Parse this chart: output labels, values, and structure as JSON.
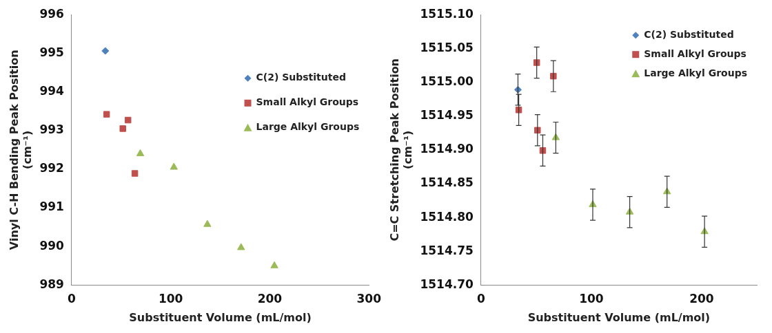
{
  "chart_data": [
    {
      "type": "scatter",
      "xlabel": "Substituent Volume (mL/mol)",
      "ylabel": "Vinyl C-H Bending Peak Position\n(cm⁻¹)",
      "xlim": [
        0,
        300
      ],
      "xticks": [
        0,
        100,
        200,
        300
      ],
      "ylim": [
        989,
        996
      ],
      "yticks": [
        989,
        990,
        991,
        992,
        993,
        994,
        995,
        996
      ],
      "grid": false,
      "legend": "right",
      "series": [
        {
          "name": "C(2) Substituted",
          "color": "#4f81bd",
          "marker": "diamond",
          "x": [
            34
          ],
          "values": [
            995.06
          ]
        },
        {
          "name": "Small Alkyl Groups",
          "color": "#c0504d",
          "marker": "square",
          "x": [
            35.3,
            51.7,
            56.9,
            63.8
          ],
          "values": [
            993.42,
            993.05,
            993.27,
            991.89
          ]
        },
        {
          "name": "Large Alkyl Groups",
          "color": "#9bbb59",
          "marker": "triangle",
          "x": [
            69.3,
            103.2,
            137,
            171,
            204.6
          ],
          "values": [
            992.4,
            992.05,
            990.57,
            989.97,
            989.5
          ]
        }
      ]
    },
    {
      "type": "scatter",
      "xlabel": "Substituent Volume (mL/mol)",
      "ylabel": "C=C Stretching Peak Position\n(cm⁻¹)",
      "xlim": [
        0,
        250
      ],
      "xticks": [
        0,
        100,
        200
      ],
      "ylim": [
        1514.7,
        1515.1
      ],
      "yticks": [
        {
          "value": 1514.7,
          "label": "1514.70"
        },
        {
          "value": 1514.75,
          "label": "1514.75"
        },
        {
          "value": 1514.8,
          "label": "1514.80"
        },
        {
          "value": 1514.85,
          "label": "1514.85"
        },
        {
          "value": 1514.9,
          "label": "1514.90"
        },
        {
          "value": 1514.95,
          "label": "1514.95"
        },
        {
          "value": 1515,
          "label": "1515.00"
        },
        {
          "value": 1515.05,
          "label": "1515.05"
        },
        {
          "value": 1515.1,
          "label": "1515.10"
        }
      ],
      "grid": false,
      "legend": "top right",
      "series": [
        {
          "name": "C(2) Substituted",
          "color": "#4f81bd",
          "marker": "diamond",
          "x": [
            33.5
          ],
          "values": [
            1514.989
          ],
          "errors": [
            0.023
          ]
        },
        {
          "name": "Small Alkyl Groups",
          "color": "#c0504d",
          "marker": "square",
          "x": [
            34.2,
            50.5,
            51.2,
            56,
            65.6
          ],
          "values": [
            1514.959,
            1515.029,
            1514.929,
            1514.899,
            1515.009
          ],
          "errors": [
            0.023,
            0.023,
            0.023,
            0.023,
            0.023
          ]
        },
        {
          "name": "Large Alkyl Groups",
          "color": "#9bbb59",
          "marker": "triangle",
          "x": [
            67.8,
            101.3,
            134.8,
            168.6,
            202.6
          ],
          "values": [
            1514.918,
            1514.819,
            1514.808,
            1514.838,
            1514.779
          ],
          "errors": [
            0.023,
            0.023,
            0.023,
            0.023,
            0.023
          ]
        }
      ]
    }
  ]
}
